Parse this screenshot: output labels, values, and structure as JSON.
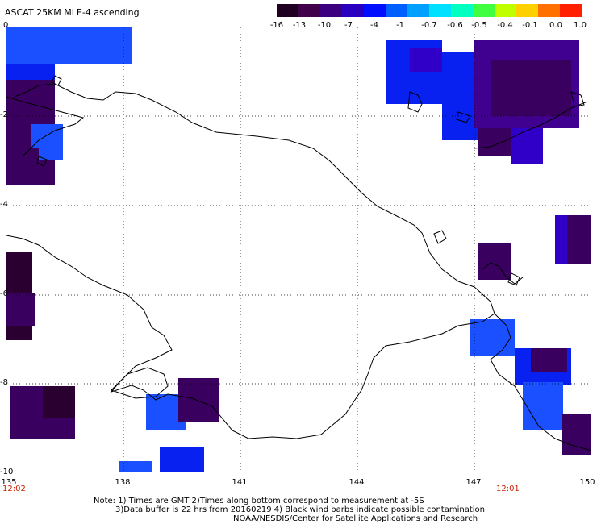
{
  "title": "ASCAT 25KM MLE-4 ascending",
  "colorbar": {
    "labels": [
      "-16",
      "-13",
      "-10",
      "-7",
      "-4",
      "-1",
      "-0.7",
      "-0.6",
      "-0.5",
      "-0.4",
      "-0.1",
      "0.0",
      "1.0"
    ],
    "colors": [
      "#200020",
      "#40004a",
      "#3a0080",
      "#2a00c0",
      "#0010ff",
      "#0060ff",
      "#00a0ff",
      "#00e0ff",
      "#00ffc0",
      "#40ff40",
      "#c0ff00",
      "#ffd000",
      "#ff7000",
      "#ff2000"
    ]
  },
  "map": {
    "lat_labels": [
      "0",
      "-2",
      "-4",
      "-6",
      "-8",
      "-10"
    ],
    "lon_labels": [
      "135",
      "138",
      "141",
      "144",
      "147",
      "150"
    ],
    "swath_colors": {
      "very_low": "#2a0030",
      "dark_purple": "#3a0060",
      "purple": "#400090",
      "indigo": "#3000c8",
      "blue": "#0820f0",
      "bright_blue": "#1a50ff"
    }
  },
  "times": {
    "left": "12:02",
    "right": "12:01"
  },
  "notes": {
    "line1": "Note: 1) Times are GMT 2)Times along bottom correspond to measurement at -5S",
    "line2": "3)Data buffer is 22 hrs from 20160219 4) Black wind barbs indicate possible contamination",
    "line3": "NOAA/NESDIS/Center for Satellite Applications and Research"
  }
}
